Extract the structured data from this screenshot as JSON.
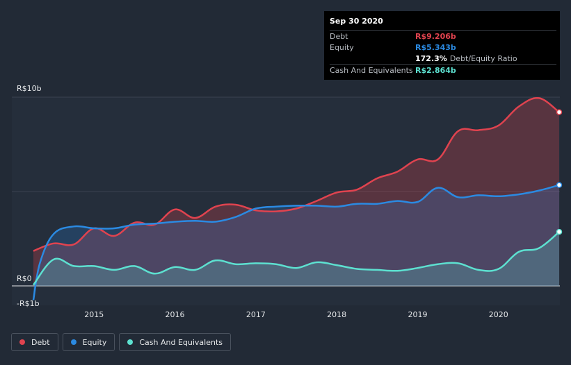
{
  "chart_data": {
    "type": "area",
    "title": "",
    "y_unit_prefix": "R$",
    "ylim": [
      -1,
      10
    ],
    "xlim": [
      2014.25,
      2020.75
    ],
    "y_tick_labels": [
      {
        "value": 10,
        "label": "R$10b"
      },
      {
        "value": 0,
        "label": "R$0"
      },
      {
        "value": -1,
        "label": "-R$1b"
      }
    ],
    "x_ticks": [
      {
        "value": 2015,
        "label": "2015"
      },
      {
        "value": 2016,
        "label": "2016"
      },
      {
        "value": 2017,
        "label": "2017"
      },
      {
        "value": 2018,
        "label": "2018"
      },
      {
        "value": 2019,
        "label": "2019"
      },
      {
        "value": 2020,
        "label": "2020"
      }
    ],
    "series": [
      {
        "name": "Debt",
        "color": "#e0434f",
        "x": [
          2014.25,
          2014.5,
          2014.75,
          2015.0,
          2015.25,
          2015.5,
          2015.75,
          2016.0,
          2016.25,
          2016.5,
          2016.75,
          2017.0,
          2017.25,
          2017.5,
          2017.75,
          2018.0,
          2018.25,
          2018.5,
          2018.75,
          2019.0,
          2019.25,
          2019.5,
          2019.75,
          2020.0,
          2020.25,
          2020.5,
          2020.75
        ],
        "values": [
          1.85,
          2.25,
          2.2,
          3.05,
          2.65,
          3.35,
          3.25,
          4.05,
          3.6,
          4.2,
          4.3,
          4.0,
          3.95,
          4.1,
          4.5,
          4.95,
          5.1,
          5.7,
          6.05,
          6.7,
          6.7,
          8.2,
          8.25,
          8.5,
          9.5,
          9.95,
          9.206
        ]
      },
      {
        "name": "Equity",
        "color": "#2b8ae2",
        "x": [
          2014.25,
          2014.33,
          2014.5,
          2014.75,
          2015.0,
          2015.25,
          2015.5,
          2015.75,
          2016.0,
          2016.25,
          2016.5,
          2016.75,
          2017.0,
          2017.25,
          2017.5,
          2017.75,
          2018.0,
          2018.25,
          2018.5,
          2018.75,
          2019.0,
          2019.25,
          2019.5,
          2019.75,
          2020.0,
          2020.25,
          2020.5,
          2020.75
        ],
        "values": [
          -0.75,
          1.2,
          2.75,
          3.15,
          3.05,
          3.05,
          3.25,
          3.3,
          3.4,
          3.45,
          3.4,
          3.65,
          4.1,
          4.2,
          4.25,
          4.25,
          4.2,
          4.35,
          4.35,
          4.5,
          4.45,
          5.2,
          4.7,
          4.8,
          4.75,
          4.85,
          5.05,
          5.343
        ]
      },
      {
        "name": "Cash And Equivalents",
        "color": "#5de0d0",
        "x": [
          2014.25,
          2014.5,
          2014.75,
          2015.0,
          2015.25,
          2015.5,
          2015.75,
          2016.0,
          2016.25,
          2016.5,
          2016.75,
          2017.0,
          2017.25,
          2017.5,
          2017.75,
          2018.0,
          2018.25,
          2018.5,
          2018.75,
          2019.0,
          2019.25,
          2019.5,
          2019.75,
          2020.0,
          2020.25,
          2020.5,
          2020.75
        ],
        "values": [
          0.05,
          1.4,
          1.05,
          1.05,
          0.85,
          1.05,
          0.65,
          1.0,
          0.85,
          1.35,
          1.15,
          1.2,
          1.15,
          0.95,
          1.25,
          1.1,
          0.9,
          0.85,
          0.8,
          0.95,
          1.15,
          1.2,
          0.85,
          0.9,
          1.8,
          2.0,
          2.864
        ]
      }
    ]
  },
  "tooltip": {
    "date": "Sep 30 2020",
    "rows": [
      {
        "label": "Debt",
        "value": "R$9.206b",
        "color": "#e0434f"
      },
      {
        "label": "Equity",
        "value": "R$5.343b",
        "color": "#2b8ae2"
      },
      {
        "label": "",
        "value": "172.3%",
        "suffix": "Debt/Equity Ratio"
      },
      {
        "label": "Cash And Equivalents",
        "value": "R$2.864b",
        "color": "#5de0d0"
      }
    ]
  },
  "legend": [
    {
      "label": "Debt",
      "color": "#e0434f"
    },
    {
      "label": "Equity",
      "color": "#2b8ae2"
    },
    {
      "label": "Cash And Equivalents",
      "color": "#5de0d0"
    }
  ]
}
